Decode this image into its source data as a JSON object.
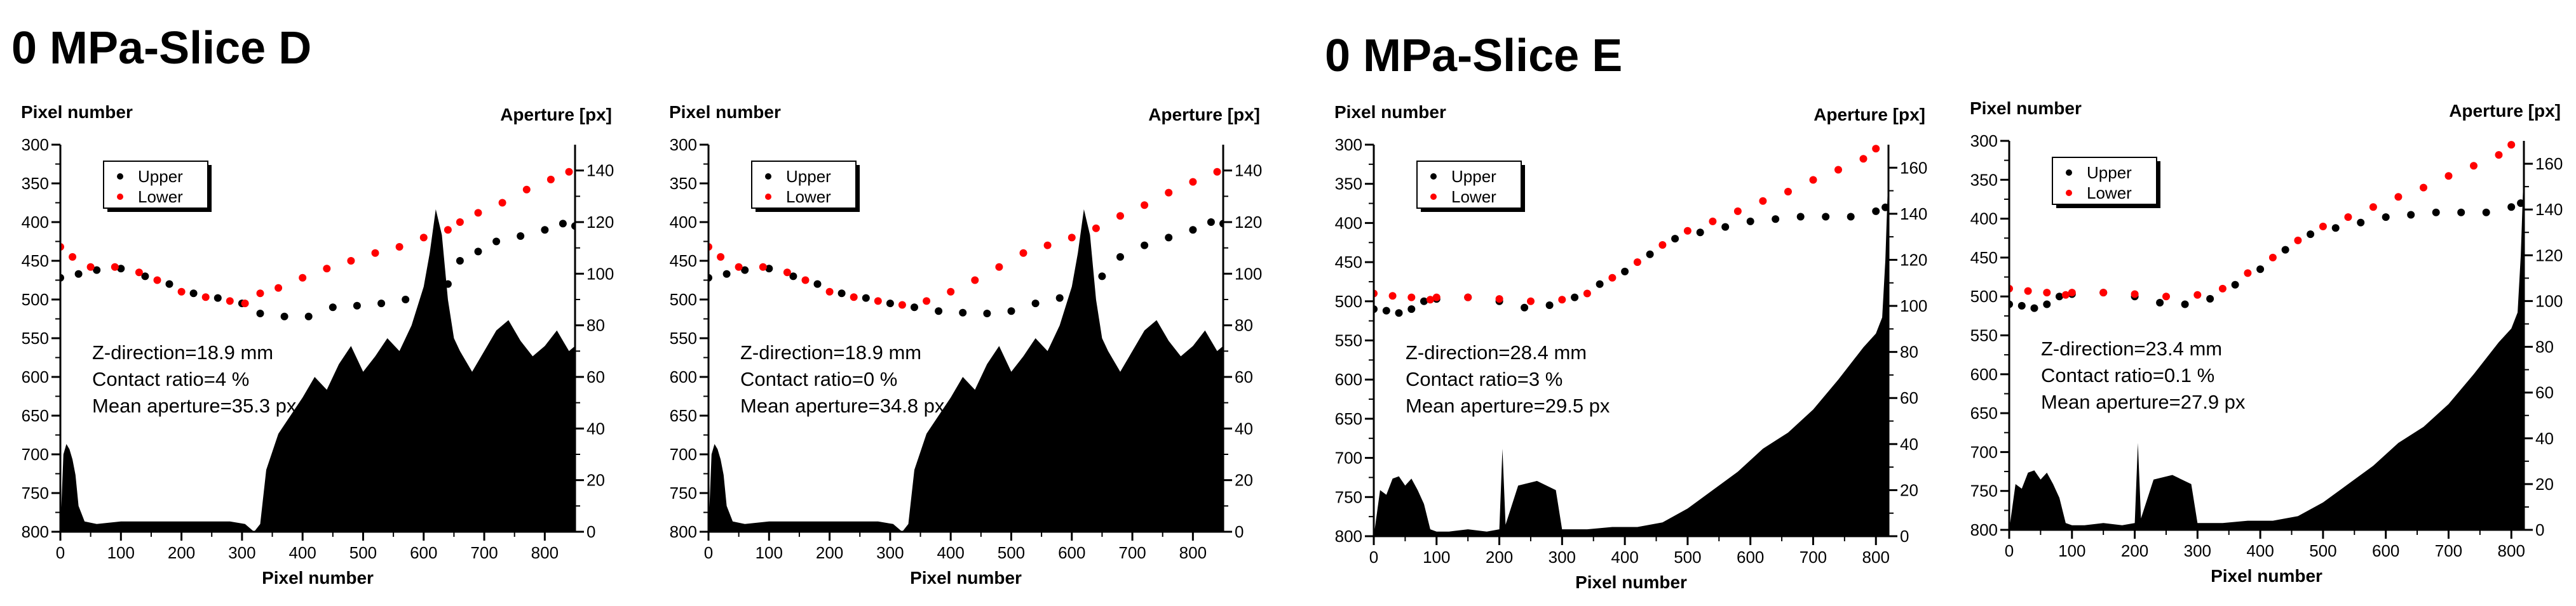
{
  "sections": [
    {
      "title": "0 MPa-Slice D"
    },
    {
      "title": "0 MPa-Slice E"
    }
  ],
  "chart_data": [
    {
      "type": "line",
      "section": "0 MPa-Slice D",
      "xlabel": "Pixel number",
      "ylabel_left": "Pixel number",
      "ylabel_right": "Aperture [px]",
      "xlim": [
        0,
        850
      ],
      "xticks": [
        0,
        100,
        200,
        300,
        400,
        500,
        600,
        700,
        800
      ],
      "ylim_left": [
        800,
        300
      ],
      "yticks_left": [
        300,
        350,
        400,
        450,
        500,
        550,
        600,
        650,
        700,
        750,
        800
      ],
      "ylim_right": [
        0,
        150
      ],
      "yticks_right": [
        0,
        20,
        40,
        60,
        80,
        100,
        120,
        140
      ],
      "legend": {
        "position": "top-left",
        "entries": [
          {
            "name": "Upper",
            "color": "#000000"
          },
          {
            "name": "Lower",
            "color": "#ff0000"
          }
        ]
      },
      "annotations": [
        "Z-direction=18.9 mm",
        "Contact ratio=4 %",
        "Mean aperture=35.3 px"
      ],
      "series": [
        {
          "name": "Upper",
          "color": "#000000",
          "x": [
            0,
            30,
            60,
            100,
            140,
            180,
            220,
            260,
            300,
            330,
            370,
            410,
            450,
            490,
            530,
            570,
            610,
            640,
            660,
            690,
            720,
            760,
            800,
            830,
            850
          ],
          "y": [
            472,
            467,
            462,
            460,
            470,
            480,
            492,
            498,
            505,
            518,
            522,
            522,
            510,
            508,
            505,
            500,
            490,
            480,
            450,
            438,
            425,
            418,
            410,
            402,
            405
          ]
        },
        {
          "name": "Lower",
          "color": "#ff0000",
          "x": [
            0,
            20,
            50,
            90,
            130,
            160,
            200,
            240,
            280,
            305,
            330,
            360,
            400,
            440,
            480,
            520,
            560,
            600,
            640,
            660,
            690,
            730,
            770,
            810,
            840,
            855
          ],
          "y": [
            432,
            445,
            458,
            458,
            465,
            475,
            490,
            497,
            502,
            505,
            492,
            485,
            472,
            460,
            450,
            440,
            432,
            420,
            410,
            400,
            388,
            375,
            358,
            345,
            335,
            325
          ]
        },
        {
          "name": "Aperture",
          "color": "#000000",
          "fill": true,
          "x": [
            0,
            5,
            10,
            15,
            20,
            25,
            30,
            40,
            60,
            100,
            200,
            280,
            305,
            320,
            330,
            340,
            360,
            380,
            400,
            420,
            440,
            460,
            480,
            500,
            520,
            540,
            560,
            580,
            600,
            610,
            620,
            630,
            640,
            650,
            660,
            680,
            700,
            720,
            740,
            760,
            780,
            800,
            820,
            840,
            850
          ],
          "y": [
            0,
            30,
            34,
            32,
            28,
            22,
            10,
            4,
            3,
            4,
            4,
            4,
            3,
            0,
            3,
            24,
            38,
            45,
            52,
            60,
            55,
            65,
            72,
            62,
            68,
            75,
            70,
            80,
            95,
            108,
            125,
            115,
            90,
            75,
            70,
            62,
            70,
            78,
            82,
            74,
            68,
            72,
            78,
            70,
            72
          ]
        }
      ]
    },
    {
      "type": "line",
      "section": "0 MPa-Slice D",
      "xlabel": "Pixel number",
      "ylabel_left": "Pixel number",
      "ylabel_right": "Aperture [px]",
      "xlim": [
        0,
        850
      ],
      "xticks": [
        0,
        100,
        200,
        300,
        400,
        500,
        600,
        700,
        800
      ],
      "ylim_left": [
        800,
        300
      ],
      "yticks_left": [
        300,
        350,
        400,
        450,
        500,
        550,
        600,
        650,
        700,
        750,
        800
      ],
      "ylim_right": [
        0,
        150
      ],
      "yticks_right": [
        0,
        20,
        40,
        60,
        80,
        100,
        120,
        140
      ],
      "legend": {
        "position": "top-left",
        "entries": [
          {
            "name": "Upper",
            "color": "#000000"
          },
          {
            "name": "Lower",
            "color": "#ff0000"
          }
        ]
      },
      "annotations": [
        "Z-direction=18.9 mm",
        "Contact ratio=0 %",
        "Mean aperture=34.8 px"
      ],
      "series": [
        {
          "name": "Upper",
          "color": "#000000",
          "x": [
            0,
            30,
            60,
            100,
            140,
            180,
            220,
            260,
            300,
            340,
            380,
            420,
            460,
            500,
            540,
            580,
            620,
            650,
            680,
            720,
            760,
            800,
            830,
            850
          ],
          "y": [
            472,
            467,
            462,
            460,
            470,
            480,
            492,
            498,
            505,
            510,
            515,
            517,
            518,
            515,
            505,
            498,
            490,
            470,
            445,
            430,
            420,
            410,
            400,
            402
          ]
        },
        {
          "name": "Lower",
          "color": "#ff0000",
          "x": [
            0,
            20,
            50,
            90,
            130,
            160,
            200,
            240,
            280,
            320,
            360,
            400,
            440,
            480,
            520,
            560,
            600,
            640,
            680,
            720,
            760,
            800,
            840,
            855
          ],
          "y": [
            432,
            445,
            458,
            458,
            465,
            475,
            490,
            497,
            502,
            507,
            502,
            490,
            475,
            458,
            440,
            430,
            420,
            408,
            392,
            378,
            362,
            348,
            335,
            325
          ]
        },
        {
          "name": "Aperture",
          "color": "#000000",
          "fill": true,
          "x": [
            0,
            5,
            10,
            15,
            20,
            25,
            30,
            40,
            60,
            100,
            200,
            280,
            305,
            320,
            330,
            340,
            360,
            380,
            400,
            420,
            440,
            460,
            480,
            500,
            520,
            540,
            560,
            580,
            600,
            610,
            620,
            630,
            640,
            650,
            660,
            680,
            700,
            720,
            740,
            760,
            780,
            800,
            820,
            840,
            850
          ],
          "y": [
            0,
            30,
            34,
            32,
            28,
            22,
            10,
            4,
            3,
            4,
            4,
            4,
            3,
            0,
            3,
            24,
            38,
            45,
            52,
            60,
            55,
            65,
            72,
            62,
            68,
            75,
            70,
            80,
            95,
            108,
            125,
            115,
            90,
            75,
            70,
            62,
            70,
            78,
            82,
            74,
            68,
            72,
            78,
            70,
            72
          ]
        }
      ]
    },
    {
      "type": "line",
      "section": "0 MPa-Slice E",
      "xlabel": "Pixel number",
      "ylabel_left": "Pixel number",
      "ylabel_right": "Aperture [px]",
      "xlim": [
        0,
        820
      ],
      "xticks": [
        0,
        100,
        200,
        300,
        400,
        500,
        600,
        700,
        800
      ],
      "ylim_left": [
        800,
        300
      ],
      "yticks_left": [
        300,
        350,
        400,
        450,
        500,
        550,
        600,
        650,
        700,
        750,
        800
      ],
      "ylim_right": [
        0,
        170
      ],
      "yticks_right": [
        0,
        20,
        40,
        60,
        80,
        100,
        120,
        140,
        160
      ],
      "legend": {
        "position": "top-left",
        "entries": [
          {
            "name": "Upper",
            "color": "#000000"
          },
          {
            "name": "Lower",
            "color": "#ff0000"
          }
        ]
      },
      "annotations": [
        "Z-direction=28.4 mm",
        "Contact ratio=3 %",
        "Mean aperture=29.5 px"
      ],
      "series": [
        {
          "name": "Upper",
          "color": "#000000",
          "x": [
            0,
            20,
            40,
            60,
            80,
            100,
            150,
            200,
            240,
            280,
            320,
            360,
            400,
            440,
            480,
            520,
            560,
            600,
            640,
            680,
            720,
            760,
            800,
            815
          ],
          "y": [
            510,
            512,
            515,
            510,
            500,
            497,
            495,
            500,
            508,
            505,
            495,
            478,
            462,
            440,
            420,
            412,
            405,
            398,
            395,
            392,
            392,
            392,
            385,
            380
          ]
        },
        {
          "name": "Lower",
          "color": "#ff0000",
          "x": [
            0,
            30,
            60,
            90,
            100,
            150,
            200,
            250,
            300,
            340,
            380,
            420,
            460,
            500,
            540,
            580,
            620,
            660,
            700,
            740,
            780,
            800,
            815
          ],
          "y": [
            490,
            493,
            495,
            498,
            495,
            495,
            497,
            500,
            498,
            490,
            470,
            450,
            428,
            410,
            398,
            385,
            372,
            360,
            345,
            332,
            318,
            305,
            295
          ]
        },
        {
          "name": "Aperture",
          "color": "#000000",
          "fill": true,
          "x": [
            0,
            10,
            20,
            30,
            40,
            50,
            60,
            70,
            80,
            90,
            100,
            120,
            150,
            180,
            200,
            205,
            210,
            230,
            260,
            290,
            300,
            340,
            380,
            420,
            460,
            500,
            540,
            580,
            620,
            660,
            700,
            740,
            780,
            800,
            810,
            815,
            820
          ],
          "y": [
            0,
            20,
            18,
            25,
            26,
            22,
            25,
            20,
            14,
            3,
            2,
            2,
            3,
            2,
            3,
            38,
            5,
            22,
            24,
            20,
            3,
            3,
            4,
            4,
            6,
            12,
            20,
            28,
            38,
            45,
            55,
            68,
            82,
            88,
            95,
            120,
            160
          ]
        }
      ]
    },
    {
      "type": "line",
      "section": "0 MPa-Slice E",
      "xlabel": "Pixel number",
      "ylabel_left": "Pixel number",
      "ylabel_right": "Aperture [px]",
      "xlim": [
        0,
        820
      ],
      "xticks": [
        0,
        100,
        200,
        300,
        400,
        500,
        600,
        700,
        800
      ],
      "ylim_left": [
        800,
        300
      ],
      "yticks_left": [
        300,
        350,
        400,
        450,
        500,
        550,
        600,
        650,
        700,
        750,
        800
      ],
      "ylim_right": [
        0,
        170
      ],
      "yticks_right": [
        0,
        20,
        40,
        60,
        80,
        100,
        120,
        140,
        160
      ],
      "legend": {
        "position": "top-left",
        "entries": [
          {
            "name": "Upper",
            "color": "#000000"
          },
          {
            "name": "Lower",
            "color": "#ff0000"
          }
        ]
      },
      "annotations": [
        "Z-direction=23.4 mm",
        "Contact ratio=0.1 %",
        "Mean aperture=27.9 px"
      ],
      "series": [
        {
          "name": "Upper",
          "color": "#000000",
          "x": [
            0,
            20,
            40,
            60,
            80,
            100,
            150,
            200,
            240,
            280,
            320,
            360,
            400,
            440,
            480,
            520,
            560,
            600,
            640,
            680,
            720,
            760,
            800,
            815
          ],
          "y": [
            510,
            512,
            515,
            510,
            500,
            497,
            495,
            500,
            508,
            510,
            503,
            485,
            465,
            440,
            420,
            412,
            405,
            398,
            395,
            392,
            392,
            392,
            385,
            380
          ]
        },
        {
          "name": "Lower",
          "color": "#ff0000",
          "x": [
            0,
            30,
            60,
            90,
            100,
            150,
            200,
            250,
            300,
            340,
            380,
            420,
            460,
            500,
            540,
            580,
            620,
            660,
            700,
            740,
            780,
            800,
            815
          ],
          "y": [
            490,
            493,
            495,
            498,
            495,
            495,
            497,
            500,
            498,
            490,
            470,
            450,
            428,
            410,
            398,
            385,
            372,
            360,
            345,
            332,
            318,
            305,
            295
          ]
        },
        {
          "name": "Aperture",
          "color": "#000000",
          "fill": true,
          "x": [
            0,
            10,
            20,
            30,
            40,
            50,
            60,
            70,
            80,
            90,
            100,
            120,
            150,
            180,
            200,
            205,
            210,
            230,
            260,
            290,
            300,
            340,
            380,
            420,
            460,
            500,
            540,
            580,
            620,
            660,
            700,
            740,
            780,
            800,
            810,
            815,
            820
          ],
          "y": [
            0,
            20,
            18,
            25,
            26,
            22,
            25,
            20,
            14,
            3,
            2,
            2,
            3,
            2,
            3,
            38,
            5,
            22,
            24,
            20,
            3,
            3,
            4,
            4,
            6,
            12,
            20,
            28,
            38,
            45,
            55,
            68,
            82,
            88,
            95,
            120,
            160
          ]
        }
      ]
    }
  ]
}
